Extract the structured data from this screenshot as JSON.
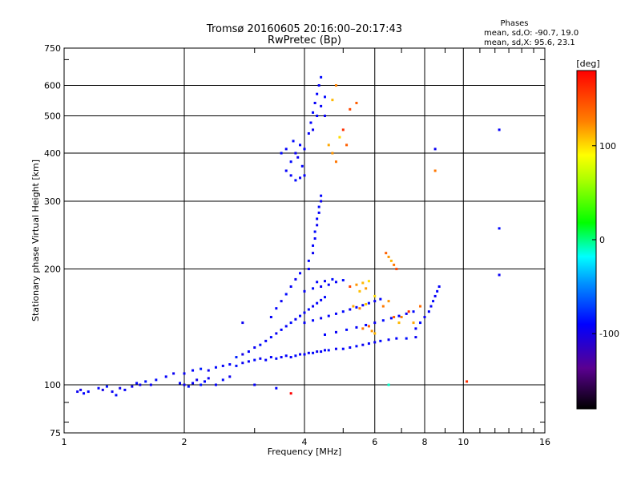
{
  "chart_data": {
    "type": "scatter",
    "title": "Tromsø 20160605 20:16:00–20:17:43",
    "subtitle": "RwPretec (Bp)",
    "xlabel": "Frequency [MHz]",
    "ylabel": "Stationary phase Virtual Height [km]",
    "x_scale": "log",
    "y_scale": "log",
    "xlim": [
      1,
      16
    ],
    "ylim": [
      75,
      750
    ],
    "x_ticks": [
      1,
      2,
      4,
      6,
      8,
      10,
      16
    ],
    "y_ticks": [
      75,
      100,
      200,
      300,
      400,
      500,
      600,
      750
    ],
    "grid": true,
    "phase_stats": {
      "heading": "Phases",
      "line_o": "mean, sd,O: -90.7, 19.0",
      "line_x": "mean, sd,X:  95.6, 23.1"
    },
    "colorbar": {
      "label": "[deg]",
      "range": [
        -180,
        180
      ],
      "ticks": [
        100,
        0,
        -100
      ],
      "colormap": "rainbow"
    },
    "series": [
      {
        "color_by": "phase_deg",
        "points": [
          [
            1.08,
            96,
            -95
          ],
          [
            1.1,
            97,
            -98
          ],
          [
            1.12,
            95,
            -90
          ],
          [
            1.22,
            98,
            -92
          ],
          [
            1.25,
            97,
            -100
          ],
          [
            1.28,
            99,
            -85
          ],
          [
            1.32,
            96,
            -95
          ],
          [
            1.35,
            94,
            -88
          ],
          [
            1.38,
            98,
            -99
          ],
          [
            1.42,
            97,
            -92
          ],
          [
            1.48,
            99,
            -96
          ],
          [
            1.52,
            101,
            -90
          ],
          [
            1.55,
            100,
            -97
          ],
          [
            1.6,
            102,
            -85
          ],
          [
            1.65,
            100,
            -94
          ],
          [
            1.7,
            103,
            -88
          ],
          [
            1.8,
            105,
            -92
          ],
          [
            1.88,
            107,
            -95
          ],
          [
            1.95,
            101,
            -90
          ],
          [
            2.0,
            100,
            -96
          ],
          [
            2.05,
            99,
            -88
          ],
          [
            2.1,
            101,
            -93
          ],
          [
            2.15,
            103,
            -98
          ],
          [
            2.2,
            100,
            -85
          ],
          [
            2.25,
            102,
            -90
          ],
          [
            2.3,
            104,
            -95
          ],
          [
            2.4,
            100,
            -92
          ],
          [
            2.5,
            103,
            -88
          ],
          [
            2.6,
            105,
            -96
          ],
          [
            2.0,
            107,
            -94
          ],
          [
            2.1,
            109,
            -90
          ],
          [
            2.2,
            110,
            -82
          ],
          [
            2.3,
            109,
            -95
          ],
          [
            2.4,
            111,
            -88
          ],
          [
            2.5,
            112,
            -93
          ],
          [
            2.6,
            113,
            -90
          ],
          [
            2.7,
            112,
            -86
          ],
          [
            2.8,
            114,
            -94
          ],
          [
            2.9,
            115,
            -92
          ],
          [
            3.0,
            116,
            -88
          ],
          [
            3.1,
            117,
            -95
          ],
          [
            3.2,
            116,
            -90
          ],
          [
            3.3,
            118,
            -92
          ],
          [
            3.4,
            117,
            -86
          ],
          [
            3.5,
            118,
            -94
          ],
          [
            3.6,
            119,
            -90
          ],
          [
            3.7,
            118,
            -92
          ],
          [
            3.8,
            119,
            -88
          ],
          [
            3.9,
            120,
            -95
          ],
          [
            4.0,
            120,
            -90
          ],
          [
            4.1,
            121,
            -93
          ],
          [
            4.2,
            121,
            -88
          ],
          [
            4.3,
            122,
            -95
          ],
          [
            4.4,
            122,
            -90
          ],
          [
            4.5,
            123,
            -92
          ],
          [
            4.6,
            123,
            -86
          ],
          [
            4.8,
            124,
            -94
          ],
          [
            5.0,
            124,
            -90
          ],
          [
            5.2,
            125,
            -92
          ],
          [
            5.4,
            126,
            -88
          ],
          [
            5.6,
            127,
            -95
          ],
          [
            5.8,
            128,
            -90
          ],
          [
            6.0,
            129,
            -93
          ],
          [
            6.2,
            130,
            -88
          ],
          [
            6.5,
            131,
            -92
          ],
          [
            6.8,
            132,
            -90
          ],
          [
            7.2,
            132,
            -86
          ],
          [
            7.6,
            133,
            -94
          ],
          [
            2.7,
            118,
            -80
          ],
          [
            2.8,
            120,
            -100
          ],
          [
            2.9,
            122,
            -90
          ],
          [
            3.0,
            125,
            -94
          ],
          [
            3.1,
            127,
            -86
          ],
          [
            3.2,
            130,
            -92
          ],
          [
            3.3,
            133,
            -88
          ],
          [
            3.4,
            136,
            -95
          ],
          [
            3.5,
            139,
            -90
          ],
          [
            3.6,
            142,
            -92
          ],
          [
            3.7,
            145,
            -87
          ],
          [
            3.8,
            148,
            -94
          ],
          [
            3.9,
            151,
            -90
          ],
          [
            4.0,
            154,
            -92
          ],
          [
            4.1,
            157,
            -88
          ],
          [
            4.2,
            160,
            -95
          ],
          [
            4.3,
            163,
            -90
          ],
          [
            4.4,
            166,
            -92
          ],
          [
            4.5,
            169,
            -88
          ],
          [
            3.3,
            150,
            -92
          ],
          [
            3.4,
            158,
            -90
          ],
          [
            3.5,
            165,
            -94
          ],
          [
            3.6,
            172,
            -88
          ],
          [
            3.7,
            180,
            -92
          ],
          [
            3.8,
            188,
            -95
          ],
          [
            3.9,
            195,
            -90
          ],
          [
            4.0,
            175,
            -92
          ],
          [
            4.2,
            178,
            -88
          ],
          [
            4.4,
            180,
            -95
          ],
          [
            4.6,
            182,
            -90
          ],
          [
            4.8,
            185,
            -92
          ],
          [
            5.0,
            187,
            -88
          ],
          [
            4.3,
            185,
            -90
          ],
          [
            4.5,
            186,
            -93
          ],
          [
            4.7,
            188,
            -87
          ],
          [
            4.0,
            145,
            -93
          ],
          [
            4.2,
            147,
            -89
          ],
          [
            4.4,
            149,
            -95
          ],
          [
            4.6,
            151,
            -90
          ],
          [
            4.8,
            153,
            -92
          ],
          [
            5.0,
            155,
            -88
          ],
          [
            5.2,
            157,
            -94
          ],
          [
            5.4,
            159,
            -90
          ],
          [
            5.6,
            161,
            -92
          ],
          [
            5.8,
            163,
            -88
          ],
          [
            6.0,
            165,
            -95
          ],
          [
            6.2,
            167,
            -90
          ],
          [
            4.5,
            135,
            -90
          ],
          [
            4.8,
            137,
            -94
          ],
          [
            5.1,
            139,
            -88
          ],
          [
            5.4,
            141,
            -92
          ],
          [
            5.7,
            143,
            -90
          ],
          [
            6.0,
            145,
            -95
          ],
          [
            6.3,
            147,
            -88
          ],
          [
            6.6,
            149,
            -92
          ],
          [
            6.9,
            151,
            -90
          ],
          [
            7.2,
            153,
            -94
          ],
          [
            7.5,
            155,
            -88
          ],
          [
            4.1,
            200,
            -92
          ],
          [
            4.1,
            210,
            -88
          ],
          [
            4.2,
            220,
            -95
          ],
          [
            4.2,
            230,
            -90
          ],
          [
            4.25,
            240,
            -92
          ],
          [
            4.25,
            250,
            -88
          ],
          [
            4.3,
            260,
            -94
          ],
          [
            4.3,
            270,
            -90
          ],
          [
            4.35,
            280,
            -92
          ],
          [
            4.35,
            290,
            -88
          ],
          [
            4.4,
            300,
            -95
          ],
          [
            4.4,
            310,
            -90
          ],
          [
            3.6,
            360,
            -92
          ],
          [
            3.7,
            380,
            -88
          ],
          [
            3.8,
            400,
            -95
          ],
          [
            3.9,
            420,
            -90
          ],
          [
            3.7,
            350,
            -92
          ],
          [
            3.8,
            340,
            -88
          ],
          [
            3.9,
            345,
            -94
          ],
          [
            4.0,
            350,
            -90
          ],
          [
            3.6,
            410,
            -92
          ],
          [
            3.75,
            430,
            -88
          ],
          [
            3.85,
            390,
            -95
          ],
          [
            3.95,
            370,
            -90
          ],
          [
            4.0,
            410,
            -92
          ],
          [
            3.5,
            400,
            -88
          ],
          [
            4.1,
            450,
            -92
          ],
          [
            4.15,
            480,
            -90
          ],
          [
            4.2,
            510,
            -88
          ],
          [
            4.25,
            540,
            -94
          ],
          [
            4.3,
            570,
            -90
          ],
          [
            4.35,
            600,
            -92
          ],
          [
            4.4,
            630,
            -88
          ],
          [
            4.2,
            460,
            -95
          ],
          [
            4.3,
            500,
            -90
          ],
          [
            4.4,
            530,
            -92
          ],
          [
            4.5,
            560,
            -88
          ],
          [
            4.5,
            500,
            -94
          ],
          [
            5.2,
            180,
            150
          ],
          [
            5.4,
            182,
            120
          ],
          [
            5.6,
            184,
            110
          ],
          [
            5.8,
            186,
            100
          ],
          [
            5.3,
            160,
            115
          ],
          [
            5.5,
            158,
            125
          ],
          [
            5.7,
            162,
            105
          ],
          [
            5.6,
            140,
            130
          ],
          [
            5.8,
            142,
            140
          ],
          [
            5.9,
            138,
            120
          ],
          [
            6.0,
            136,
            110
          ],
          [
            5.5,
            175,
            108
          ],
          [
            5.7,
            178,
            118
          ],
          [
            6.0,
            170,
            100
          ],
          [
            6.4,
            220,
            140
          ],
          [
            6.5,
            215,
            120
          ],
          [
            6.6,
            210,
            110
          ],
          [
            6.7,
            205,
            130
          ],
          [
            6.8,
            200,
            150
          ],
          [
            6.3,
            160,
            130
          ],
          [
            6.5,
            165,
            120
          ],
          [
            6.7,
            150,
            140
          ],
          [
            6.9,
            145,
            110
          ],
          [
            7.0,
            150,
            125
          ],
          [
            7.3,
            155,
            160
          ],
          [
            7.5,
            145,
            115
          ],
          [
            7.8,
            160,
            135
          ],
          [
            4.6,
            420,
            115
          ],
          [
            4.7,
            400,
            120
          ],
          [
            4.8,
            380,
            130
          ],
          [
            4.9,
            440,
            100
          ],
          [
            5.0,
            460,
            160
          ],
          [
            4.7,
            550,
            110
          ],
          [
            4.8,
            600,
            125
          ],
          [
            5.1,
            420,
            140
          ],
          [
            7.6,
            140,
            -92
          ],
          [
            7.8,
            145,
            -88
          ],
          [
            8.0,
            150,
            -95
          ],
          [
            8.2,
            155,
            -90
          ],
          [
            8.3,
            160,
            -92
          ],
          [
            8.4,
            165,
            -88
          ],
          [
            8.5,
            170,
            -94
          ],
          [
            8.6,
            175,
            -90
          ],
          [
            8.7,
            180,
            -92
          ],
          [
            8.5,
            410,
            -95
          ],
          [
            8.5,
            360,
            130
          ],
          [
            12.3,
            460,
            -92
          ],
          [
            12.3,
            255,
            -88
          ],
          [
            12.3,
            193,
            -94
          ],
          [
            10.2,
            102,
            160
          ],
          [
            3.7,
            95,
            180
          ],
          [
            5.2,
            520,
            150
          ],
          [
            5.4,
            540,
            140
          ],
          [
            2.8,
            145,
            -95
          ],
          [
            3.4,
            98,
            -90
          ],
          [
            3.0,
            100,
            -92
          ],
          [
            1.15,
            96,
            -90
          ],
          [
            6.5,
            100,
            -10
          ]
        ]
      }
    ]
  }
}
